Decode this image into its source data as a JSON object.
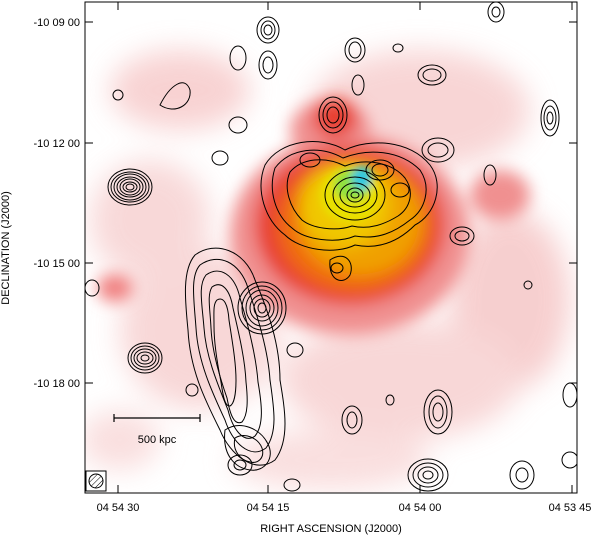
{
  "figure": {
    "x_axis_label": "RIGHT ASCENSION  (J2000)",
    "y_axis_label": "DECLINATION  (J2000)",
    "x_ticks": [
      "04 54 30",
      "04 54 15",
      "04 54 00",
      "04 53 45"
    ],
    "y_ticks": [
      "-10 09 00",
      "-10 12 00",
      "-10 15 00",
      "-10 18 00"
    ],
    "scale_bar_label": "500 kpc",
    "colormap": [
      "#ffffff",
      "#f8c8c8",
      "#f08080",
      "#e83020",
      "#f06010",
      "#f0a000",
      "#e8e000",
      "#80e040",
      "#20c0e0"
    ],
    "contour_color": "#000000"
  }
}
